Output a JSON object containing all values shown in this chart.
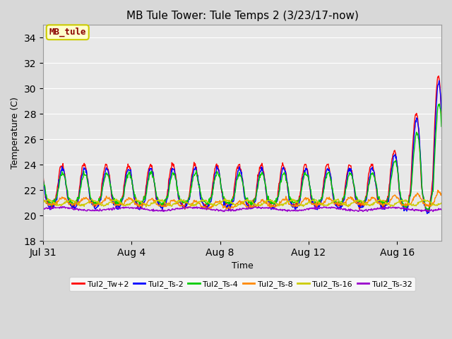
{
  "title": "MB Tule Tower: Tule Temps 2 (3/23/17-now)",
  "xlabel": "Time",
  "ylabel": "Temperature (C)",
  "ylim": [
    18,
    35
  ],
  "yticks": [
    18,
    20,
    22,
    24,
    26,
    28,
    30,
    32,
    34
  ],
  "fig_bg_color": "#d8d8d8",
  "plot_bg_color": "#e8e8e8",
  "series_colors": [
    "#ff0000",
    "#0000ff",
    "#00cc00",
    "#ff8800",
    "#cccc00",
    "#9900cc"
  ],
  "series_labels": [
    "Tul2_Tw+2",
    "Tul2_Ts-2",
    "Tul2_Ts-4",
    "Tul2_Ts-8",
    "Tul2_Ts-16",
    "Tul2_Ts-32"
  ],
  "xtick_positions": [
    0,
    4,
    8,
    12,
    16
  ],
  "xtick_labels": [
    "Jul 31",
    "Aug 4",
    "Aug 8",
    "Aug 12",
    "Aug 16"
  ],
  "annotation_text": "MB_tule",
  "annotation_color": "#8b0000",
  "annotation_bg": "#ffffcc",
  "annotation_edge": "#cccc00",
  "n_days": 18,
  "n_points": 864
}
